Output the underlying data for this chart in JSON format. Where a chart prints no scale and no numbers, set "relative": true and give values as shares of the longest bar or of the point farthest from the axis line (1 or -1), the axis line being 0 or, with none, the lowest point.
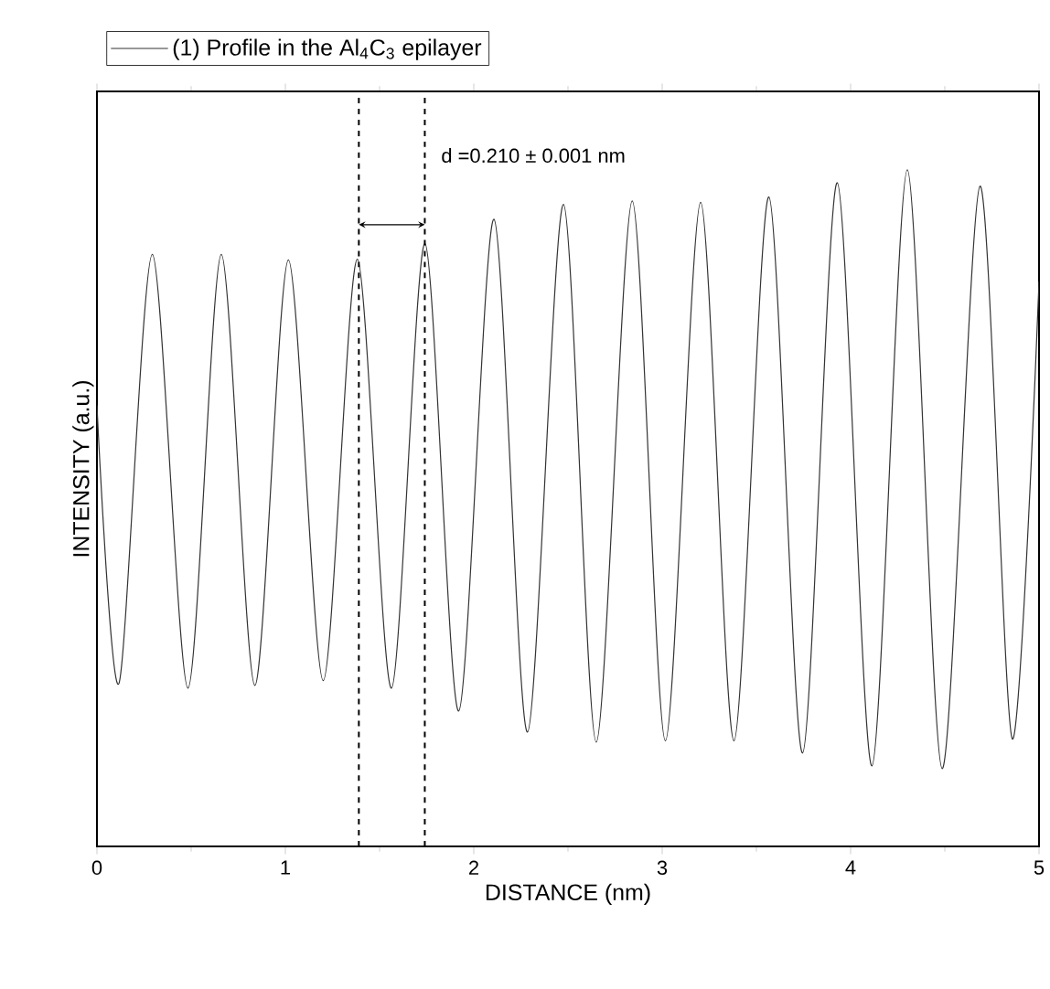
{
  "chart_data": {
    "type": "line",
    "relative": true,
    "xlabel": "DISTANCE (nm)",
    "ylabel": "INTENSITY (a.u.)",
    "xlim": [
      0,
      5
    ],
    "xticks": [
      0,
      1,
      2,
      3,
      4,
      5
    ],
    "series": [
      {
        "name": "(1) Profile in the Al$_{4}$C$_{3}$ epilayer",
        "color": "#333333",
        "x": [
          0,
          0.117,
          0.294,
          0.483,
          0.66,
          0.838,
          1.016,
          1.201,
          1.382,
          1.563,
          1.741,
          1.92,
          2.107,
          2.285,
          2.476,
          2.65,
          2.841,
          3.017,
          3.204,
          3.381,
          3.566,
          3.745,
          3.929,
          4.113,
          4.301,
          4.486,
          4.687,
          4.858,
          5
        ],
        "values": [
          0.652,
          0.241,
          0.875,
          0.234,
          0.875,
          0.238,
          0.867,
          0.245,
          0.868,
          0.234,
          0.891,
          0.2,
          0.927,
          0.169,
          0.949,
          0.154,
          0.954,
          0.156,
          0.952,
          0.156,
          0.96,
          0.138,
          0.981,
          0.119,
          1,
          0.115,
          0.976,
          0.159,
          0.835
        ]
      }
    ],
    "ref_lines": [
      {
        "axis": "x",
        "value": 1.39,
        "color": "#000000",
        "line_style": "dashed"
      },
      {
        "axis": "x",
        "value": 1.74,
        "color": "#000000",
        "line_style": "dashed"
      }
    ],
    "annotations": [
      "d =0.210 ± 0.001 nm"
    ],
    "legend": "top",
    "marker": "none",
    "line_style": "solid",
    "grid": false
  }
}
